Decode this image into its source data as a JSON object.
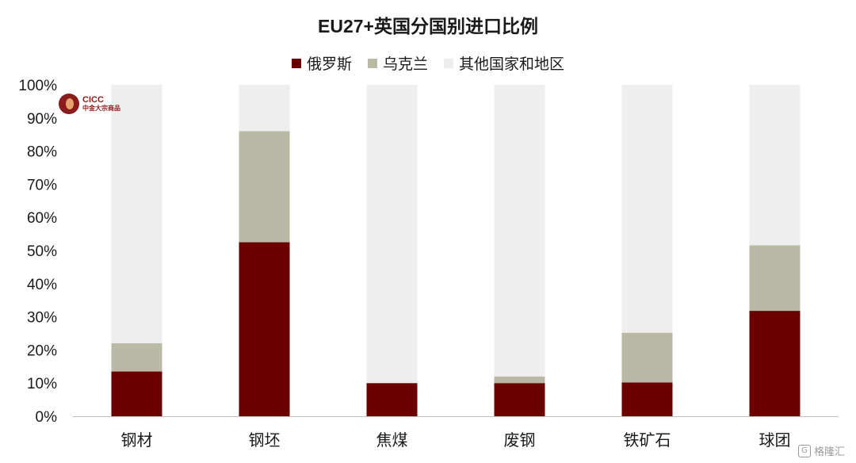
{
  "chart_data": {
    "type": "bar",
    "stacked": true,
    "title": "EU27+英国分国别进口比例",
    "categories": [
      "钢材",
      "钢坯",
      "焦煤",
      "废钢",
      "铁矿石",
      "球团"
    ],
    "series": [
      {
        "name": "俄罗斯",
        "color": "#6b0000",
        "values": [
          13.5,
          52.5,
          10.0,
          10.0,
          10.2,
          31.8
        ]
      },
      {
        "name": "乌克兰",
        "color": "#b9b9a6",
        "values": [
          8.5,
          33.5,
          0.0,
          2.0,
          15.0,
          19.8
        ]
      },
      {
        "name": "其他国家和地区",
        "color": "#eeeeee",
        "values": [
          78.0,
          14.0,
          90.0,
          88.0,
          74.8,
          48.4
        ]
      }
    ],
    "ylim": [
      0,
      100
    ],
    "yticks": [
      "0%",
      "10%",
      "20%",
      "30%",
      "40%",
      "50%",
      "60%",
      "70%",
      "80%",
      "90%",
      "100%"
    ],
    "grid": false,
    "legend_position": "top"
  },
  "logo": {
    "en": "CICC",
    "cn": "中金大宗商品"
  },
  "watermark": {
    "icon": "G",
    "text": "格隆汇"
  }
}
